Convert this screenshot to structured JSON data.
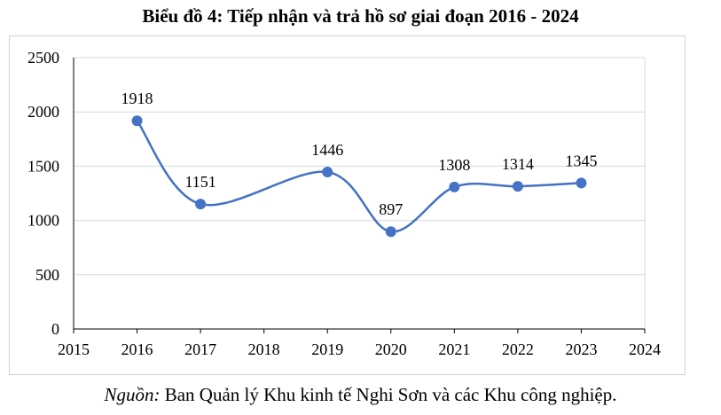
{
  "chart_data": {
    "type": "line",
    "title": "Biểu đồ 4: Tiếp nhận và trả hồ sơ giai đoạn 2016 - 2024",
    "xlabel": "",
    "ylabel": "",
    "x_ticks": [
      2015,
      2016,
      2017,
      2018,
      2019,
      2020,
      2021,
      2022,
      2023,
      2024
    ],
    "y_ticks": [
      0,
      500,
      1000,
      1500,
      2000,
      2500
    ],
    "xlim": [
      2015,
      2024
    ],
    "ylim": [
      0,
      2500
    ],
    "grid": "horizontal",
    "legend": "none",
    "series": [
      {
        "x": [
          2016,
          2017,
          2019,
          2020,
          2021,
          2022,
          2023
        ],
        "values": [
          1918,
          1151,
          1446,
          897,
          1308,
          1314,
          1345
        ],
        "color": "#4472c4",
        "smooth": true,
        "data_labels": true
      }
    ]
  },
  "source": {
    "label": "Nguồn:",
    "text": " Ban Quản lý Khu kinh tế Nghi Sơn và các Khu công nghiệp."
  }
}
